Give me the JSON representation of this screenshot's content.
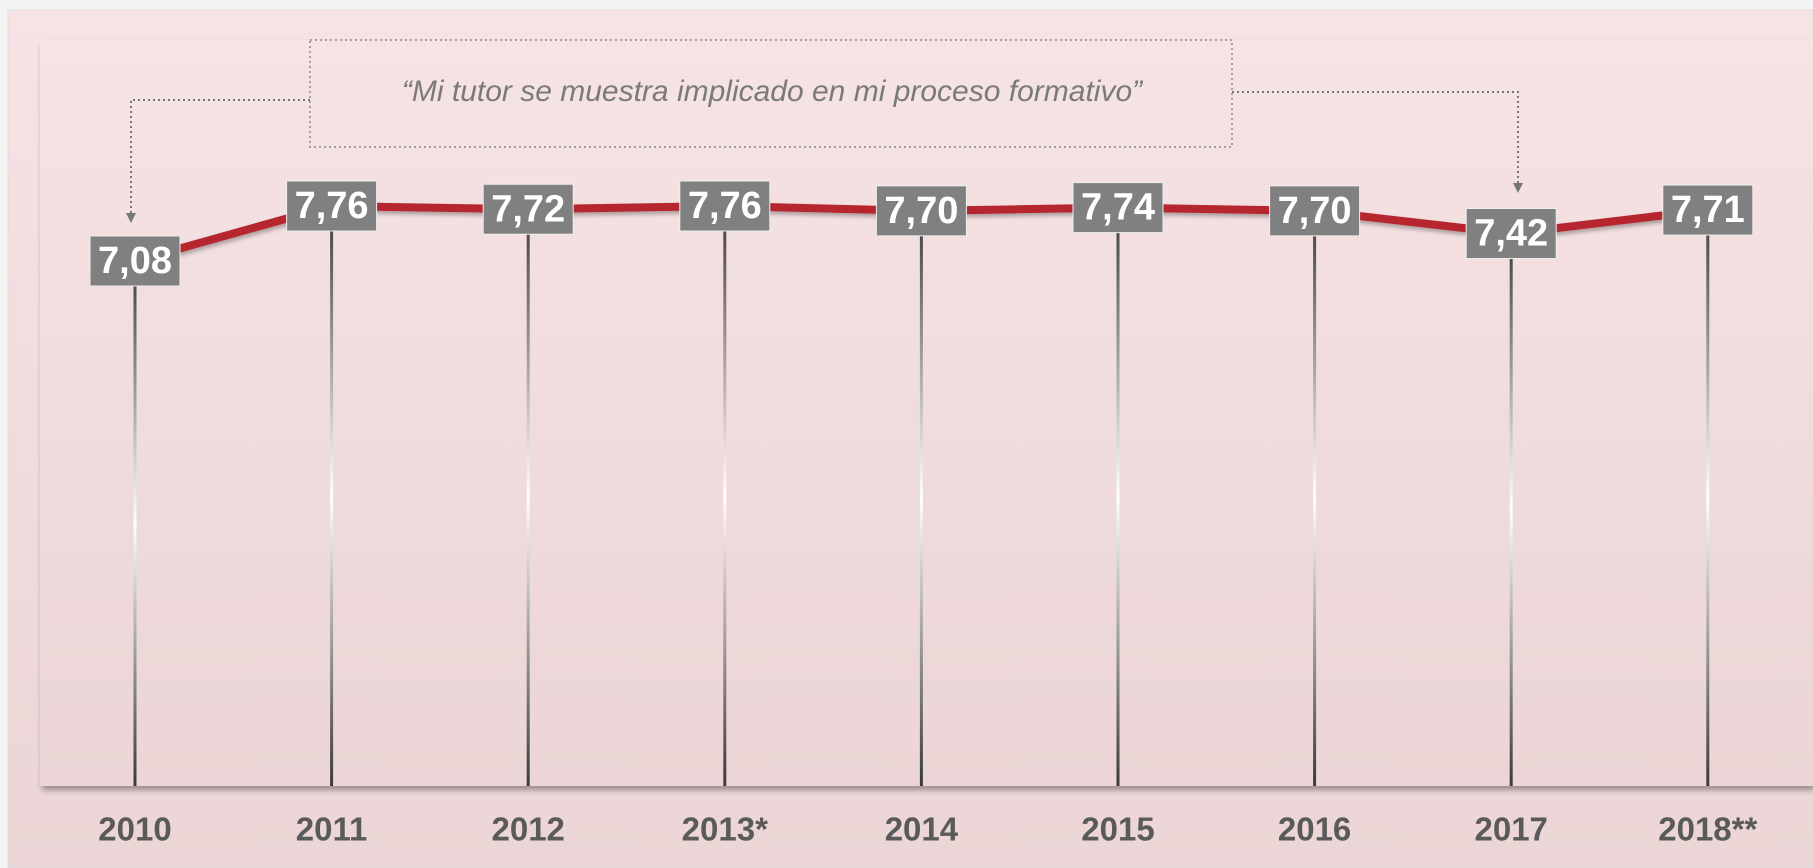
{
  "chart_data": {
    "type": "line",
    "annotation": "“Mi tutor se muestra implicado en mi proceso formativo”",
    "categories": [
      "2010",
      "2011",
      "2012",
      "2013*",
      "2014",
      "2015",
      "2016",
      "2017",
      "2018**"
    ],
    "values": [
      7.08,
      7.76,
      7.72,
      7.76,
      7.7,
      7.74,
      7.7,
      7.42,
      7.71
    ],
    "value_labels": [
      "7,08",
      "7,76",
      "7,72",
      "7,76",
      "7,70",
      "7,74",
      "7,70",
      "7,42",
      "7,71"
    ],
    "color": "#b5272f"
  }
}
